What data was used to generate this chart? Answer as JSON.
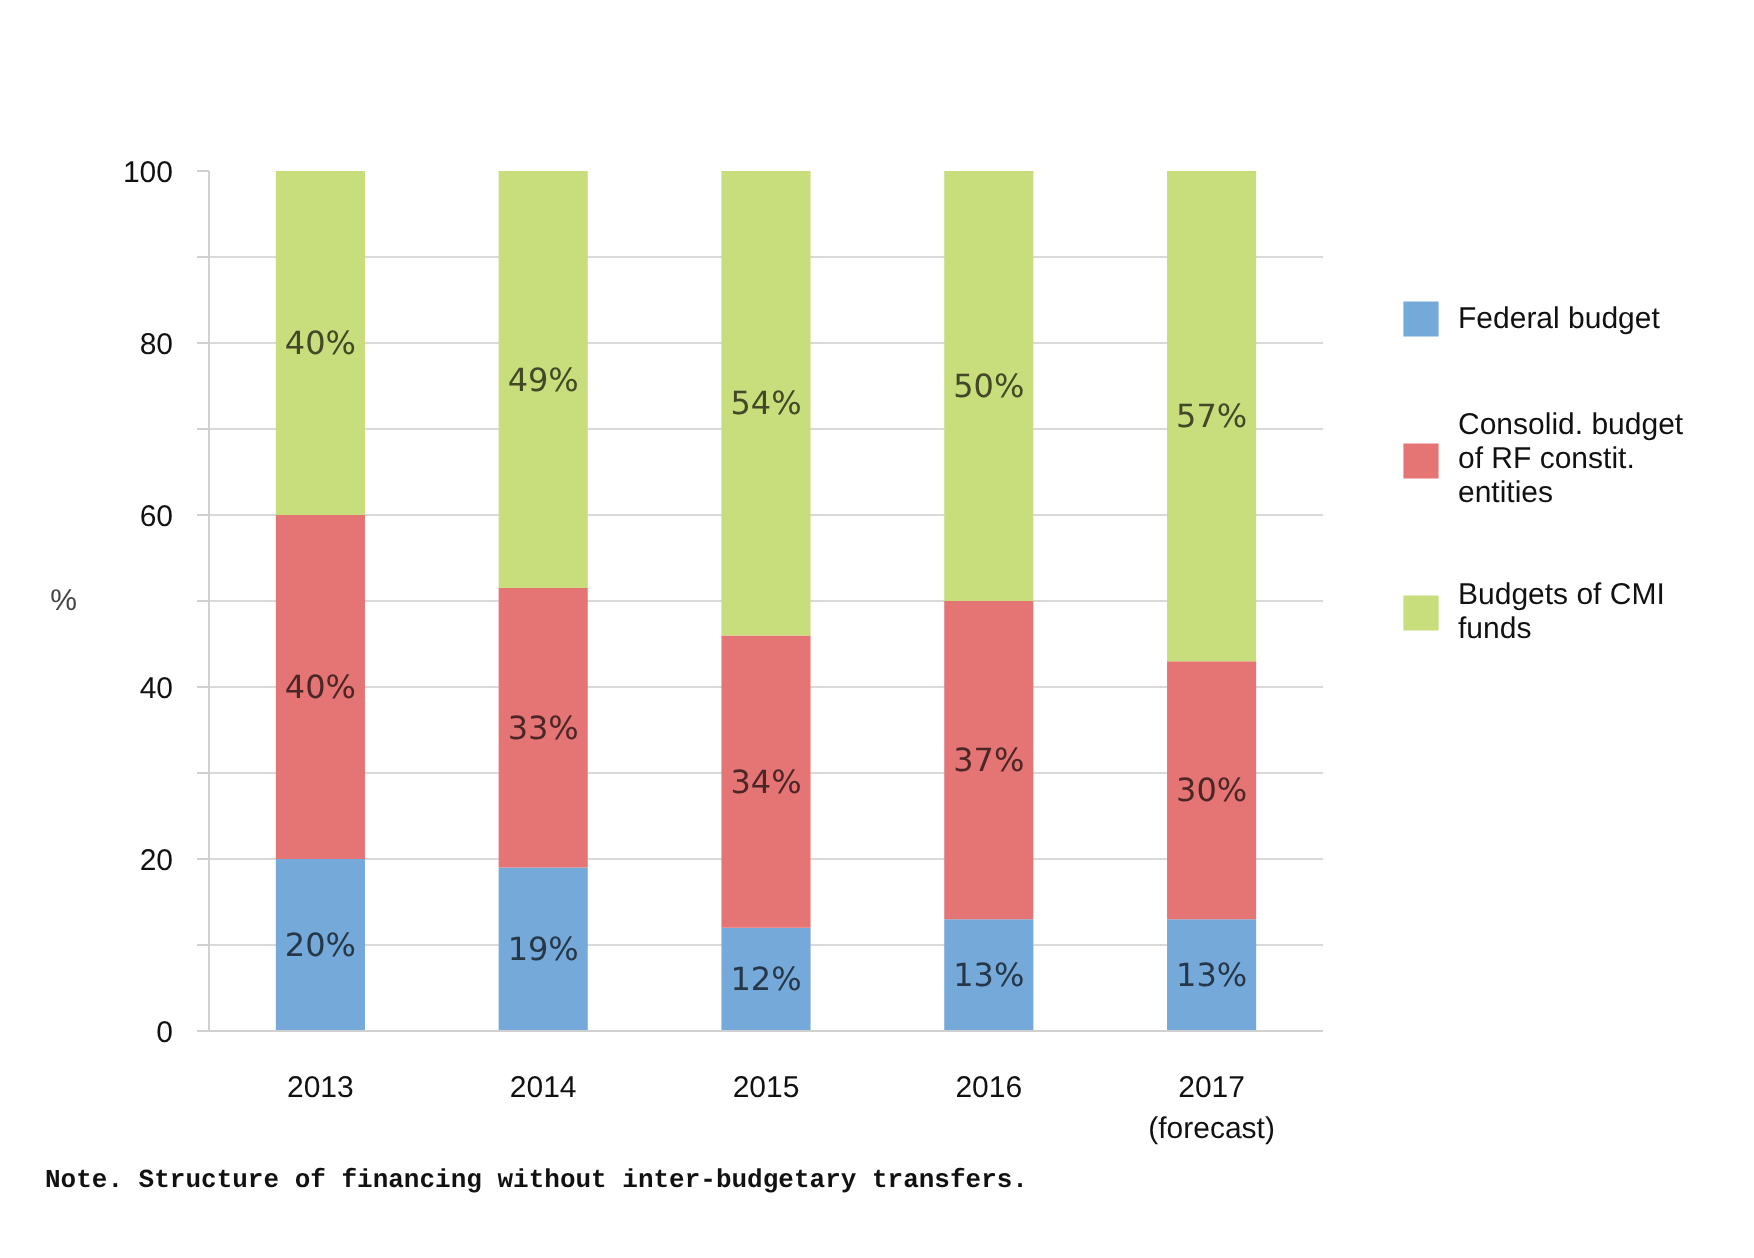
{
  "chart_data": {
    "type": "bar",
    "stacked": true,
    "categories": [
      "2013",
      "2014",
      "2015",
      "2016",
      "2017\n(forecast)"
    ],
    "ylabel": "%",
    "ylim": [
      0,
      100
    ],
    "yticks": [
      0,
      {
        "value": 10,
        "label": null
      },
      20,
      {
        "value": 30,
        "label": null
      },
      40,
      {
        "value": 50,
        "label": null
      },
      60,
      {
        "value": 70,
        "label": null
      },
      80,
      {
        "value": 90,
        "label": null
      },
      100
    ],
    "grid": "y",
    "legend": "right",
    "series": [
      {
        "name": "Federal budget",
        "color": "#75a9d9",
        "values": [
          20,
          19,
          12,
          13,
          13
        ],
        "value_labels": [
          "20%",
          "19%",
          "12%",
          "13%",
          "13%"
        ]
      },
      {
        "name": "Consolid. budget of RF constit. entities",
        "color": "#e57575",
        "values": [
          40,
          32.5,
          34,
          37,
          30
        ],
        "value_labels": [
          "40%",
          "33%",
          "34%",
          "37%",
          "30%"
        ]
      },
      {
        "name": "Budgets of CMI funds",
        "color": "#c8dd7c",
        "values": [
          40,
          48.5,
          54,
          50,
          57
        ],
        "value_labels": [
          "40%",
          "49%",
          "54%",
          "50%",
          "57%"
        ]
      }
    ],
    "annotations": [
      "Note. Structure of financing without inter-budgetary transfers."
    ]
  }
}
